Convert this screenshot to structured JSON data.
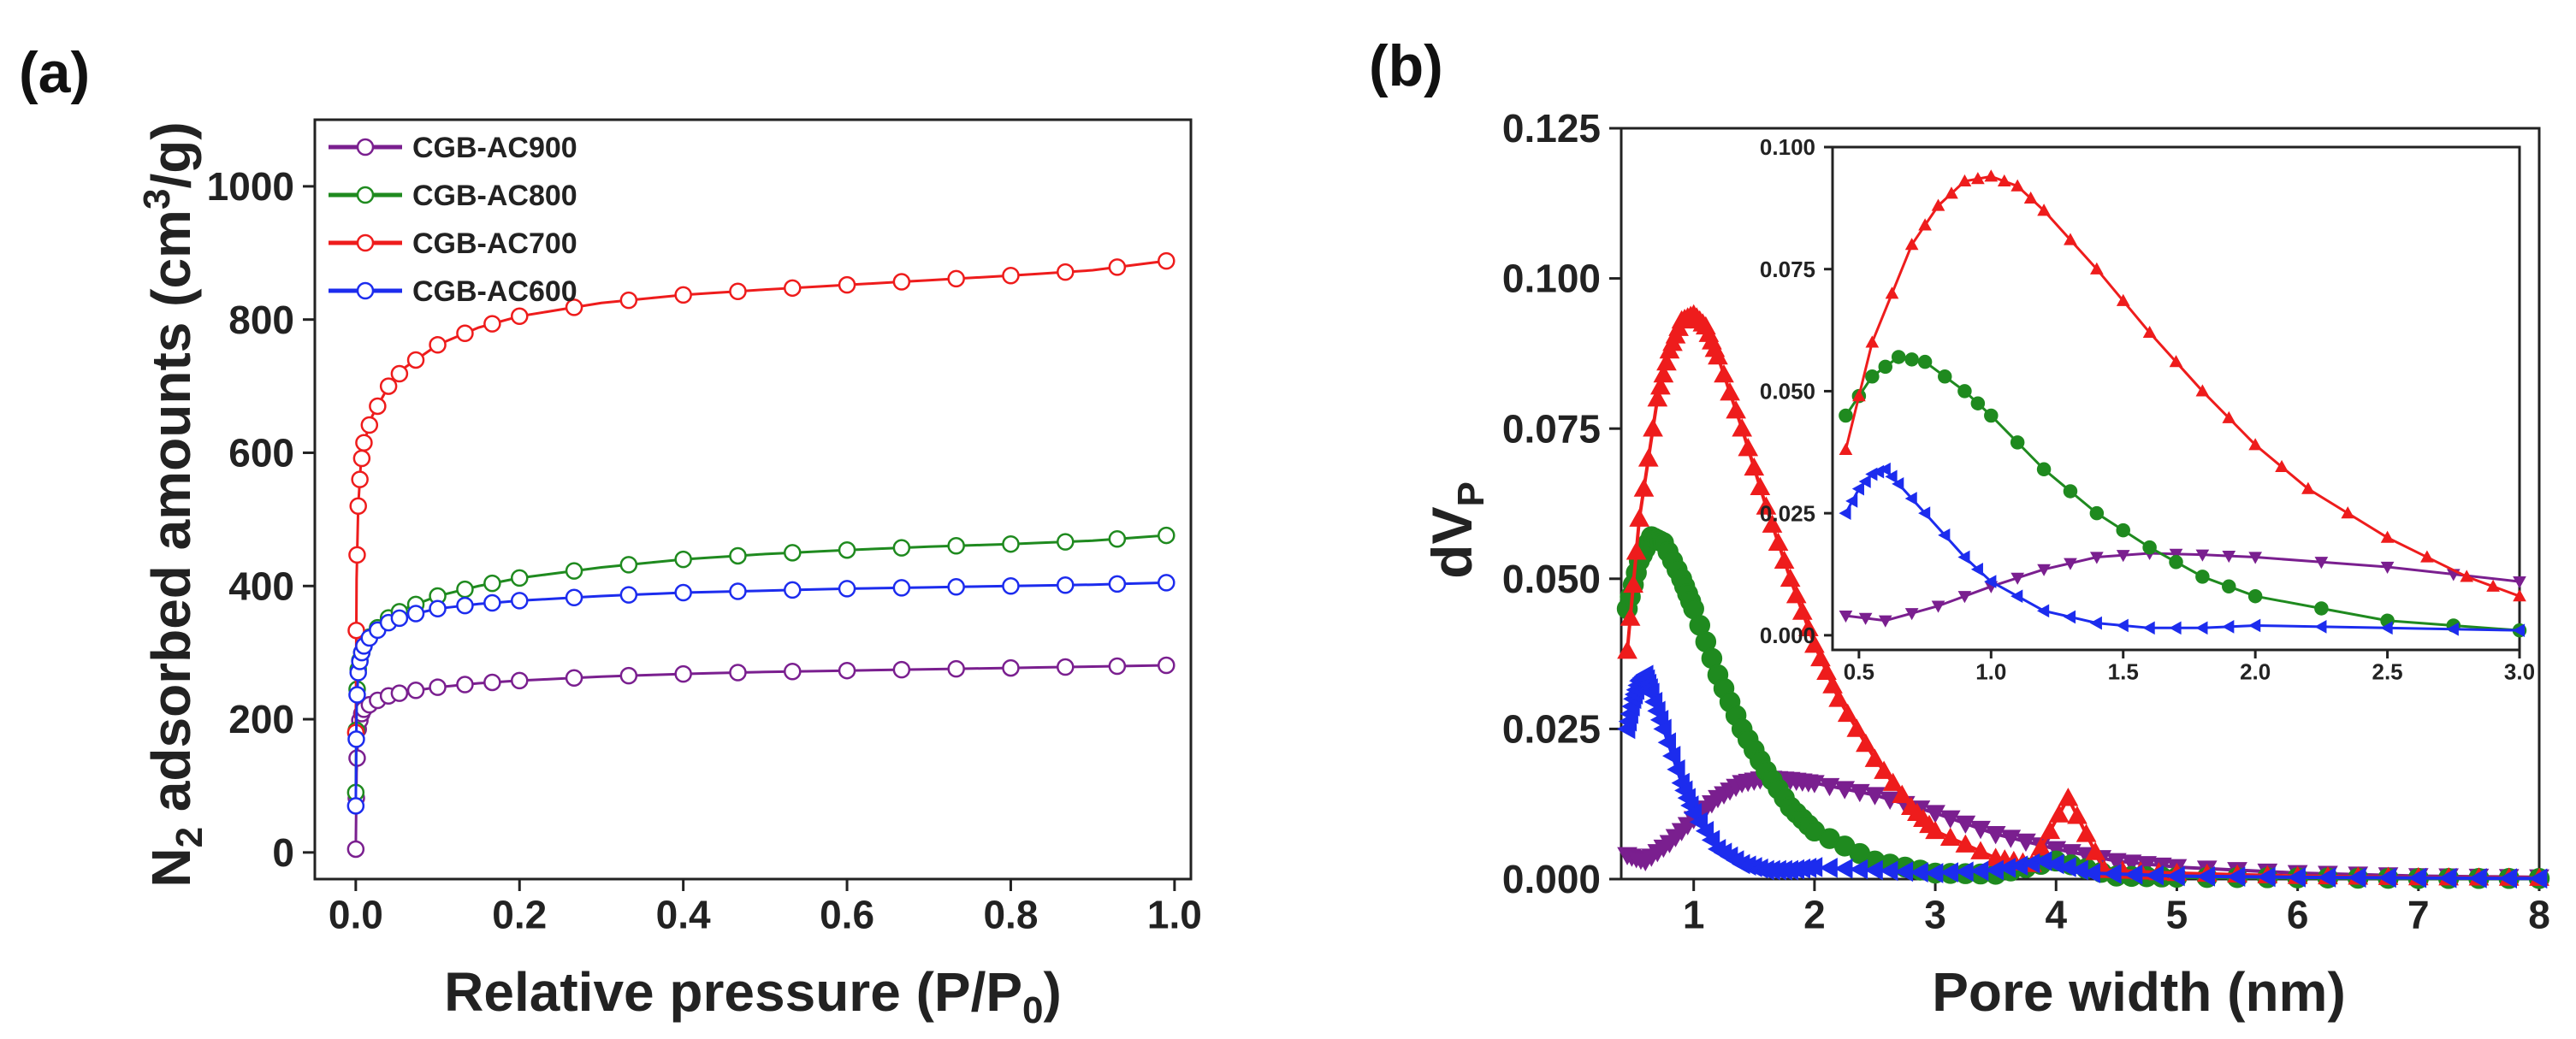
{
  "panels": {
    "a": {
      "label": "(a)"
    },
    "b": {
      "label": "(b)"
    }
  },
  "chart_data": [
    {
      "id": "a",
      "type": "line",
      "title": "",
      "xlabel_main": "Relative pressure (P/P",
      "xlabel_sub": "0",
      "xlabel_end": ")",
      "ylabel_pre": "N",
      "ylabel_sub": "2",
      "ylabel_main": " adsorbed amounts (cm",
      "ylabel_sup": "3",
      "ylabel_end": "/g)",
      "xlim": [
        -0.05,
        1.02
      ],
      "ylim": [
        -40,
        1100
      ],
      "xticks": [
        0.0,
        0.2,
        0.4,
        0.6,
        0.8,
        1.0
      ],
      "xtick_labels": [
        "0.0",
        "0.2",
        "0.4",
        "0.6",
        "0.8",
        "1.0"
      ],
      "yticks": [
        0,
        200,
        400,
        600,
        800,
        1000
      ],
      "ytick_labels": [
        "0",
        "200",
        "400",
        "600",
        "800",
        "1000"
      ],
      "legend_position": "top-left",
      "series": [
        {
          "name": "CGB-AC900",
          "color": "#7a1f8f",
          "x": [
            0.0,
            0.001,
            0.003,
            0.006,
            0.01,
            0.02,
            0.04,
            0.06,
            0.1,
            0.15,
            0.2,
            0.3,
            0.4,
            0.5,
            0.6,
            0.7,
            0.8,
            0.9,
            0.99
          ],
          "y": [
            5,
            120,
            185,
            205,
            215,
            225,
            235,
            241,
            248,
            254,
            258,
            264,
            268,
            271,
            273,
            275,
            277,
            279,
            281
          ]
        },
        {
          "name": "CGB-AC800",
          "color": "#1f8a1f",
          "x": [
            0.0,
            0.001,
            0.003,
            0.006,
            0.01,
            0.02,
            0.04,
            0.06,
            0.1,
            0.15,
            0.2,
            0.3,
            0.4,
            0.5,
            0.6,
            0.7,
            0.8,
            0.9,
            0.99
          ],
          "y": [
            90,
            230,
            275,
            295,
            310,
            330,
            352,
            366,
            385,
            400,
            412,
            428,
            440,
            448,
            454,
            459,
            463,
            468,
            476
          ]
        },
        {
          "name": "CGB-AC700",
          "color": "#ee1c1c",
          "x": [
            0.0,
            0.001,
            0.003,
            0.006,
            0.01,
            0.02,
            0.04,
            0.06,
            0.1,
            0.15,
            0.2,
            0.3,
            0.4,
            0.5,
            0.6,
            0.7,
            0.8,
            0.9,
            0.99
          ],
          "y": [
            180,
            410,
            520,
            580,
            615,
            655,
            700,
            728,
            762,
            788,
            805,
            825,
            837,
            845,
            852,
            859,
            866,
            874,
            888
          ]
        },
        {
          "name": "CGB-AC600",
          "color": "#1c2cee",
          "x": [
            0.0,
            0.001,
            0.003,
            0.006,
            0.01,
            0.02,
            0.04,
            0.06,
            0.1,
            0.15,
            0.2,
            0.3,
            0.4,
            0.5,
            0.6,
            0.7,
            0.8,
            0.9,
            0.99
          ],
          "y": [
            70,
            220,
            270,
            295,
            310,
            328,
            345,
            355,
            366,
            373,
            378,
            385,
            390,
            393,
            396,
            398,
            400,
            402,
            405
          ]
        }
      ]
    },
    {
      "id": "b",
      "type": "line",
      "title": "",
      "xlabel": "Pore width (nm)",
      "ylabel_main": "dV",
      "ylabel_sub": "P",
      "xlim": [
        0.4,
        8
      ],
      "ylim": [
        0,
        0.125
      ],
      "xticks": [
        1,
        2,
        3,
        4,
        5,
        6,
        7,
        8
      ],
      "xtick_labels": [
        "1",
        "2",
        "3",
        "4",
        "5",
        "6",
        "7",
        "8"
      ],
      "yticks": [
        0.0,
        0.025,
        0.05,
        0.075,
        0.1,
        0.125
      ],
      "ytick_labels": [
        "0.000",
        "0.025",
        "0.050",
        "0.075",
        "0.100",
        "0.125"
      ],
      "series": [
        {
          "name": "CGB-AC900",
          "color": "#7a1f8f",
          "x": [
            0.45,
            0.6,
            0.8,
            1.0,
            1.2,
            1.4,
            1.6,
            1.8,
            2.0,
            2.5,
            3.0,
            3.5,
            4.0,
            4.5,
            5.0,
            6.0,
            7.0,
            8.0
          ],
          "y": [
            0.004,
            0.003,
            0.006,
            0.01,
            0.0135,
            0.016,
            0.0168,
            0.0165,
            0.016,
            0.014,
            0.011,
            0.0075,
            0.005,
            0.003,
            0.002,
            0.001,
            0.0005,
            0.0003
          ]
        },
        {
          "name": "CGB-AC800",
          "color": "#1f8a1f",
          "x": [
            0.45,
            0.55,
            0.65,
            0.75,
            0.9,
            1.0,
            1.2,
            1.4,
            1.6,
            1.8,
            2.0,
            2.5,
            3.0,
            3.5,
            4.0,
            4.5,
            5.0,
            6.0,
            7.0,
            8.0
          ],
          "y": [
            0.045,
            0.053,
            0.057,
            0.056,
            0.05,
            0.045,
            0.034,
            0.025,
            0.018,
            0.012,
            0.008,
            0.003,
            0.001,
            0.0008,
            0.003,
            0.0005,
            0.0003,
            0.0002,
            0.0001,
            0.0001
          ]
        },
        {
          "name": "CGB-AC700",
          "color": "#ee1c1c",
          "x": [
            0.45,
            0.55,
            0.7,
            0.8,
            0.9,
            1.0,
            1.1,
            1.2,
            1.4,
            1.6,
            1.8,
            2.0,
            2.2,
            2.5,
            2.8,
            3.0,
            3.5,
            3.8,
            4.1,
            4.4,
            5.0,
            6.0,
            7.0,
            8.0
          ],
          "y": [
            0.038,
            0.06,
            0.08,
            0.088,
            0.093,
            0.094,
            0.092,
            0.087,
            0.075,
            0.062,
            0.05,
            0.039,
            0.03,
            0.02,
            0.012,
            0.008,
            0.0035,
            0.0025,
            0.0135,
            0.0015,
            0.001,
            0.0005,
            0.0003,
            0.0002
          ]
        },
        {
          "name": "CGB-AC600",
          "color": "#1c2cee",
          "x": [
            0.45,
            0.5,
            0.55,
            0.6,
            0.65,
            0.75,
            0.9,
            1.0,
            1.2,
            1.4,
            1.6,
            1.8,
            2.0,
            2.5,
            3.0,
            3.5,
            3.9,
            4.3,
            5.0,
            6.0,
            7.0,
            8.0
          ],
          "y": [
            0.025,
            0.03,
            0.033,
            0.034,
            0.031,
            0.025,
            0.016,
            0.011,
            0.005,
            0.0025,
            0.0015,
            0.0015,
            0.002,
            0.0015,
            0.001,
            0.0015,
            0.003,
            0.001,
            0.0005,
            0.0003,
            0.0002,
            0.0001
          ]
        }
      ],
      "inset": {
        "xlim": [
          0.4,
          3.0
        ],
        "ylim": [
          -0.003,
          0.1
        ],
        "xticks": [
          0.5,
          1.0,
          1.5,
          2.0,
          2.5,
          3.0
        ],
        "xtick_labels": [
          "0.5",
          "1.0",
          "1.5",
          "2.0",
          "2.5",
          "3.0"
        ],
        "yticks": [
          0.0,
          0.025,
          0.05,
          0.075,
          0.1
        ],
        "ytick_labels": [
          "0.000",
          "0.025",
          "0.050",
          "0.075",
          "0.100"
        ]
      }
    }
  ]
}
